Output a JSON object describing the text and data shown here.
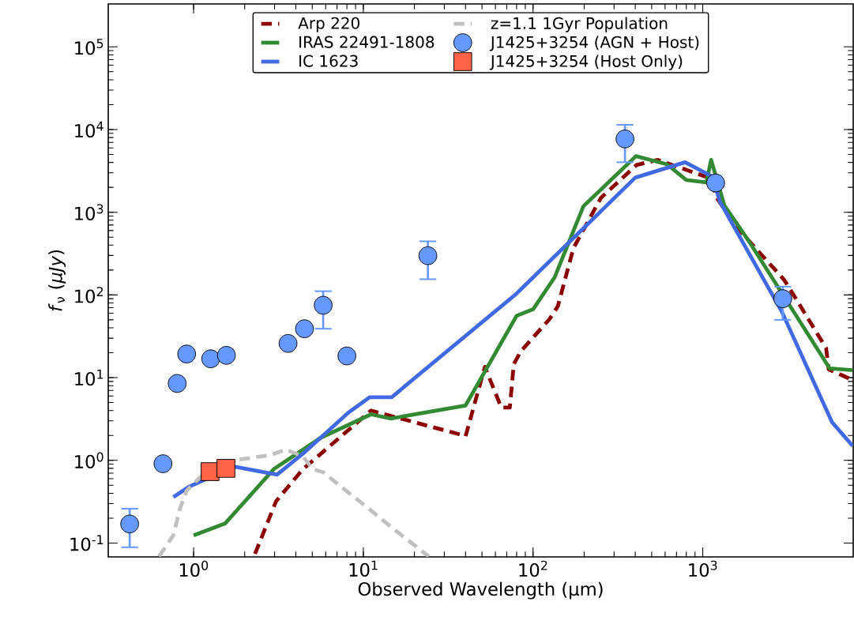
{
  "chart_data": {
    "type": "line",
    "xlabel": "Observed Wavelength (μm)",
    "ylabel": "*f*$_{ν}$ (*μJy*)",
    "log": "xy",
    "legend": "top",
    "xlim": [
      0.314,
      7700
    ],
    "ylim": [
      0.068,
      330000
    ],
    "xticks": [
      {
        "value": 1,
        "label": "10$^{0}$"
      },
      {
        "value": 10,
        "label": "10$^{1}$"
      },
      {
        "value": 100,
        "label": "10$^{2}$"
      },
      {
        "value": 1000,
        "label": "10$^{3}$"
      }
    ],
    "yticks": [
      {
        "value": 0.1,
        "label": "10$^{-1}$"
      },
      {
        "value": 1,
        "label": "10$^{0}$"
      },
      {
        "value": 10,
        "label": "10$^{1}$"
      },
      {
        "value": 100,
        "label": "10$^{2}$"
      },
      {
        "value": 1000,
        "label": "10$^{3}$"
      },
      {
        "value": 10000,
        "label": "10$^{4}$"
      },
      {
        "value": 100000,
        "label": "10$^{5}$"
      }
    ],
    "series": [
      {
        "name": "Arp 220",
        "color": "#8b0000",
        "line_style": "dashed",
        "x": [
          2.3,
          3.06,
          4.4,
          11.1,
          36,
          40,
          52,
          65,
          73,
          77,
          85,
          125,
          140,
          173,
          251,
          407,
          542,
          1110,
          1210,
          1580,
          3010,
          3600,
          5330,
          5520,
          7600
        ],
        "values": [
          0.074,
          0.32,
          0.78,
          4.0,
          2.09,
          1.95,
          13.5,
          4.35,
          4.35,
          14.6,
          21,
          51,
          73,
          369,
          1490,
          3730,
          4300,
          2570,
          1490,
          662,
          153,
          85,
          22.7,
          12.6,
          9.4
        ]
      },
      {
        "name": "IRAS 22491-1808",
        "color": "#348a34",
        "line_style": "solid",
        "x": [
          1.0,
          1.53,
          2.96,
          5.6,
          11.1,
          14.5,
          40,
          80,
          100,
          134,
          198,
          404,
          615,
          800,
          1050,
          1120,
          1190,
          1340,
          1850,
          5600,
          7640
        ],
        "values": [
          0.124,
          0.172,
          0.78,
          1.87,
          3.6,
          3.2,
          4.6,
          56,
          67,
          163,
          1180,
          4770,
          3800,
          2450,
          2290,
          4300,
          null,
          1210,
          462,
          12.9,
          12.3
        ]
      },
      {
        "name": "IC 1623",
        "color": "#4169e1",
        "line_style": "solid",
        "x": [
          0.76,
          0.94,
          1.73,
          3.1,
          4.4,
          8.2,
          10.9,
          14.7,
          80,
          400,
          787,
          1140,
          1260,
          2920,
          5770,
          7640
        ],
        "values": [
          0.36,
          0.48,
          0.84,
          0.67,
          1.2,
          3.8,
          5.8,
          5.8,
          104,
          2620,
          4020,
          2690,
          1350,
          63,
          2.9,
          1.5
        ]
      },
      {
        "name": "z=1.1 1Gyr Population",
        "color": "#c0c0c0",
        "line_style": "dashed",
        "x": [
          0.625,
          0.76,
          0.83,
          0.91,
          1.13,
          1.73,
          2.85,
          3.5,
          4.4,
          5.05,
          5.8,
          7.2,
          10.3,
          14.7,
          24.3
        ],
        "values": [
          0.069,
          0.124,
          0.26,
          0.43,
          0.67,
          1.0,
          1.16,
          1.35,
          1.12,
          0.78,
          0.72,
          0.5,
          0.28,
          0.154,
          0.069
        ]
      },
      {
        "name": "J1425+3254 (AGN + Host)",
        "type": "scatter",
        "marker": "circle",
        "color": "#6699ff",
        "x": [
          0.42,
          0.66,
          0.8,
          0.91,
          1.26,
          1.56,
          3.6,
          4.5,
          5.8,
          8.0,
          24,
          348,
          1190,
          2960
        ],
        "values": [
          0.17,
          0.91,
          8.5,
          19.3,
          16.9,
          18.6,
          25.9,
          39,
          75,
          18.3,
          298,
          7700,
          2260,
          90
        ],
        "errors": [
          [
            0.089,
            0.26
          ],
          null,
          null,
          null,
          null,
          null,
          null,
          null,
          [
            39,
            111
          ],
          null,
          [
            155,
            445
          ],
          [
            4020,
            11400
          ],
          null,
          [
            50,
            126
          ]
        ]
      },
      {
        "name": "J1425+3254 (Host Only)",
        "type": "scatter",
        "marker": "square",
        "color": "#ff6347",
        "x": [
          1.25,
          1.55
        ],
        "values": [
          0.73,
          0.8
        ]
      }
    ]
  }
}
